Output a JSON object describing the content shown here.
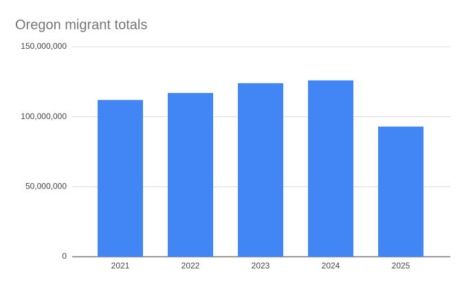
{
  "chart_data": {
    "type": "bar",
    "title": "Oregon migrant totals",
    "categories": [
      "2021",
      "2022",
      "2023",
      "2024",
      "2025"
    ],
    "values": [
      112000000,
      117000000,
      124000000,
      126000000,
      93000000
    ],
    "color": "#4285f4",
    "ylim": [
      0,
      150000000
    ],
    "yticks": [
      0,
      {
        "value": 50000000,
        "label": "50,000,000"
      },
      {
        "value": 100000000,
        "label": "100,000,000"
      },
      {
        "value": 150000000,
        "label": "150,000,000"
      }
    ],
    "grid": true
  }
}
